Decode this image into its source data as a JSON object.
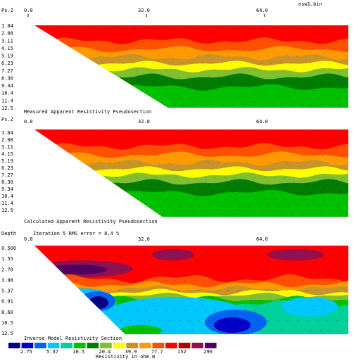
{
  "header": {
    "filename": "nsw1.bin"
  },
  "x_ticks": [
    "0.0",
    "32.0",
    "64.0"
  ],
  "x_tick_values": [
    0,
    32,
    64
  ],
  "panels": [
    {
      "id": "measured",
      "axis_label": "Ps.Z",
      "caption": "Measured Apparent Resistivity Pseudosection",
      "depths": [
        "1.04",
        "2.08",
        "3.11",
        "4.15",
        "5.19",
        "6.23",
        "7.27",
        "8.30",
        "9.34",
        "10.4",
        "11.4",
        "12.5"
      ]
    },
    {
      "id": "calculated",
      "axis_label": "Ps.Z",
      "caption": "Calculated Apparent Resistivity Pseudosection",
      "depths": [
        "1.04",
        "2.08",
        "3.11",
        "4.15",
        "5.19",
        "6.23",
        "7.27",
        "8.30",
        "9.34",
        "10.4",
        "11.4",
        "12.5"
      ]
    },
    {
      "id": "inverse",
      "axis_label": "Depth",
      "title": "Iteration 5 RMS error = 8.4 %",
      "caption": "Inverse Model Resistivity Section",
      "depths": [
        "0.500",
        "1.55",
        "2.70",
        "3.98",
        "5.37",
        "6.91",
        "8.60",
        "10.5",
        "12.5"
      ]
    }
  ],
  "legend": {
    "labels": [
      "2.75",
      "5.37",
      "10.5",
      "20.4",
      "39.9",
      "77.7",
      "152",
      "296"
    ],
    "colors": [
      "#000080",
      "#0000c8",
      "#0064f0",
      "#00c8ff",
      "#00d09a",
      "#00c000",
      "#007c00",
      "#80c030",
      "#ffff00",
      "#c89428",
      "#ff9b00",
      "#ff5000",
      "#ff0000",
      "#b00000",
      "#901050",
      "#500060"
    ],
    "units": "Resistivity in ohm.m"
  },
  "chart_data": [
    {
      "type": "heatmap",
      "name": "measured",
      "xlabel": "",
      "ylabel": "Ps.Z",
      "xlim": [
        0,
        96
      ],
      "x_ticks": [
        0,
        32,
        64
      ],
      "y": [
        1.04,
        2.08,
        3.11,
        4.15,
        5.19,
        6.23,
        7.27,
        8.3,
        9.34,
        10.4,
        11.4,
        12.5
      ],
      "bands_ohm_m": [
        500,
        296,
        152,
        77.7,
        39.9,
        20.4,
        39.9,
        20.4
      ]
    },
    {
      "type": "heatmap",
      "name": "calculated",
      "xlabel": "",
      "ylabel": "Ps.Z",
      "xlim": [
        0,
        96
      ],
      "x_ticks": [
        0,
        32,
        64
      ],
      "y": [
        1.04,
        2.08,
        3.11,
        4.15,
        5.19,
        6.23,
        7.27,
        8.3,
        9.34,
        10.4,
        11.4,
        12.5
      ],
      "bands_ohm_m": [
        500,
        296,
        152,
        77.7,
        39.9,
        20.4,
        39.9,
        20.4
      ]
    },
    {
      "type": "heatmap",
      "name": "inverse",
      "xlabel": "",
      "ylabel": "Depth",
      "xlim": [
        0,
        96
      ],
      "x_ticks": [
        0,
        32,
        64
      ],
      "y": [
        0.5,
        1.55,
        2.7,
        3.98,
        5.37,
        6.91,
        8.6,
        10.5,
        12.5
      ],
      "bands_ohm_m": [
        296,
        500,
        152,
        77.7,
        39.9,
        20.4,
        10.5,
        20.4,
        5.37
      ]
    }
  ]
}
